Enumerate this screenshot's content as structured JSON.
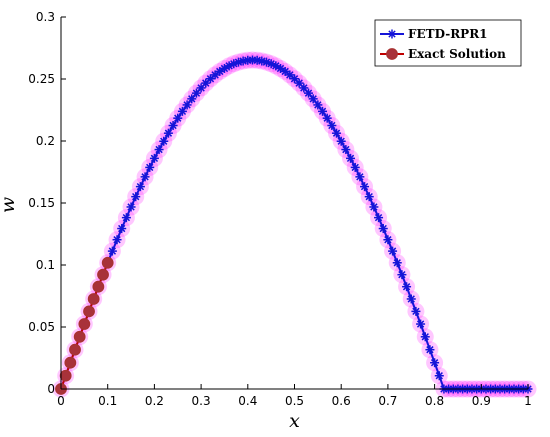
{
  "chart_data": {
    "type": "line",
    "xlabel": "x",
    "ylabel": "w",
    "xlim": [
      0,
      1
    ],
    "ylim": [
      0,
      0.3
    ],
    "x_ticks": [
      "0",
      "0.1",
      "0.2",
      "0.3",
      "0.4",
      "0.5",
      "0.6",
      "0.7",
      "0.8",
      "0.9",
      "1"
    ],
    "y_ticks": [
      "0",
      "0.05",
      "0.1",
      "0.15",
      "0.2",
      "0.25",
      "0.3"
    ],
    "legend_position": "top-right",
    "grid": false,
    "colors": {
      "fetd": "#1515d8",
      "exact_line": "#c00000",
      "exact_marker_edge": "#a83232",
      "exact_marker_fill": "#a8323a",
      "halo": "#ff00ff"
    },
    "series": [
      {
        "name": "FETD-RPR1",
        "marker": "asterisk",
        "x": [
          0,
          0.01,
          0.02,
          0.03,
          0.04,
          0.05,
          0.06,
          0.07,
          0.08,
          0.09,
          0.1,
          0.11,
          0.12,
          0.13,
          0.14,
          0.15,
          0.16,
          0.17,
          0.18,
          0.19,
          0.2,
          0.21,
          0.22,
          0.23,
          0.24,
          0.25,
          0.26,
          0.27,
          0.28,
          0.29,
          0.3,
          0.31,
          0.32,
          0.33,
          0.34,
          0.35,
          0.36,
          0.37,
          0.38,
          0.39,
          0.4,
          0.41,
          0.42,
          0.43,
          0.44,
          0.45,
          0.46,
          0.47,
          0.48,
          0.49,
          0.5,
          0.51,
          0.52,
          0.53,
          0.54,
          0.55,
          0.56,
          0.57,
          0.58,
          0.59,
          0.6,
          0.61,
          0.62,
          0.63,
          0.64,
          0.65,
          0.66,
          0.67,
          0.68,
          0.69,
          0.7,
          0.71,
          0.72,
          0.73,
          0.74,
          0.75,
          0.76,
          0.77,
          0.78,
          0.79,
          0.8,
          0.81,
          0.82,
          0.83,
          0.84,
          0.85,
          0.86,
          0.87,
          0.88,
          0.89,
          0.9,
          0.91,
          0.92,
          0.93,
          0.94,
          0.95,
          0.96,
          0.97,
          0.98,
          0.99,
          1
        ],
        "y": [
          0,
          0.0107,
          0.0212,
          0.0317,
          0.0421,
          0.0524,
          0.0626,
          0.0726,
          0.0825,
          0.0922,
          0.1018,
          0.1112,
          0.1204,
          0.1294,
          0.1382,
          0.1468,
          0.1551,
          0.1632,
          0.1711,
          0.1787,
          0.186,
          0.1931,
          0.1998,
          0.2063,
          0.2125,
          0.2184,
          0.2239,
          0.2291,
          0.234,
          0.2386,
          0.2428,
          0.2467,
          0.2502,
          0.2533,
          0.2561,
          0.2585,
          0.2606,
          0.2623,
          0.2636,
          0.2645,
          0.2651,
          0.2653,
          0.2651,
          0.2645,
          0.2636,
          0.2623,
          0.2606,
          0.2585,
          0.2561,
          0.2533,
          0.2502,
          0.2467,
          0.2428,
          0.2386,
          0.234,
          0.2291,
          0.2239,
          0.2184,
          0.2125,
          0.2063,
          0.1998,
          0.1931,
          0.186,
          0.1787,
          0.1711,
          0.1632,
          0.1551,
          0.1468,
          0.1382,
          0.1294,
          0.1204,
          0.1112,
          0.1018,
          0.0922,
          0.0825,
          0.0726,
          0.0626,
          0.0524,
          0.0421,
          0.0317,
          0.0212,
          0.0107,
          0,
          0,
          0,
          0,
          0,
          0,
          0,
          0,
          0,
          0,
          0,
          0,
          0,
          0,
          0,
          0,
          0,
          0,
          0
        ]
      },
      {
        "name": "Exact Solution",
        "marker": "circle",
        "x": [
          0,
          0.01,
          0.02,
          0.03,
          0.04,
          0.05,
          0.06,
          0.07,
          0.08,
          0.09,
          0.1
        ],
        "y": [
          0,
          0.0107,
          0.0212,
          0.0317,
          0.0421,
          0.0524,
          0.0626,
          0.0726,
          0.0825,
          0.0922,
          0.1018
        ]
      }
    ]
  }
}
